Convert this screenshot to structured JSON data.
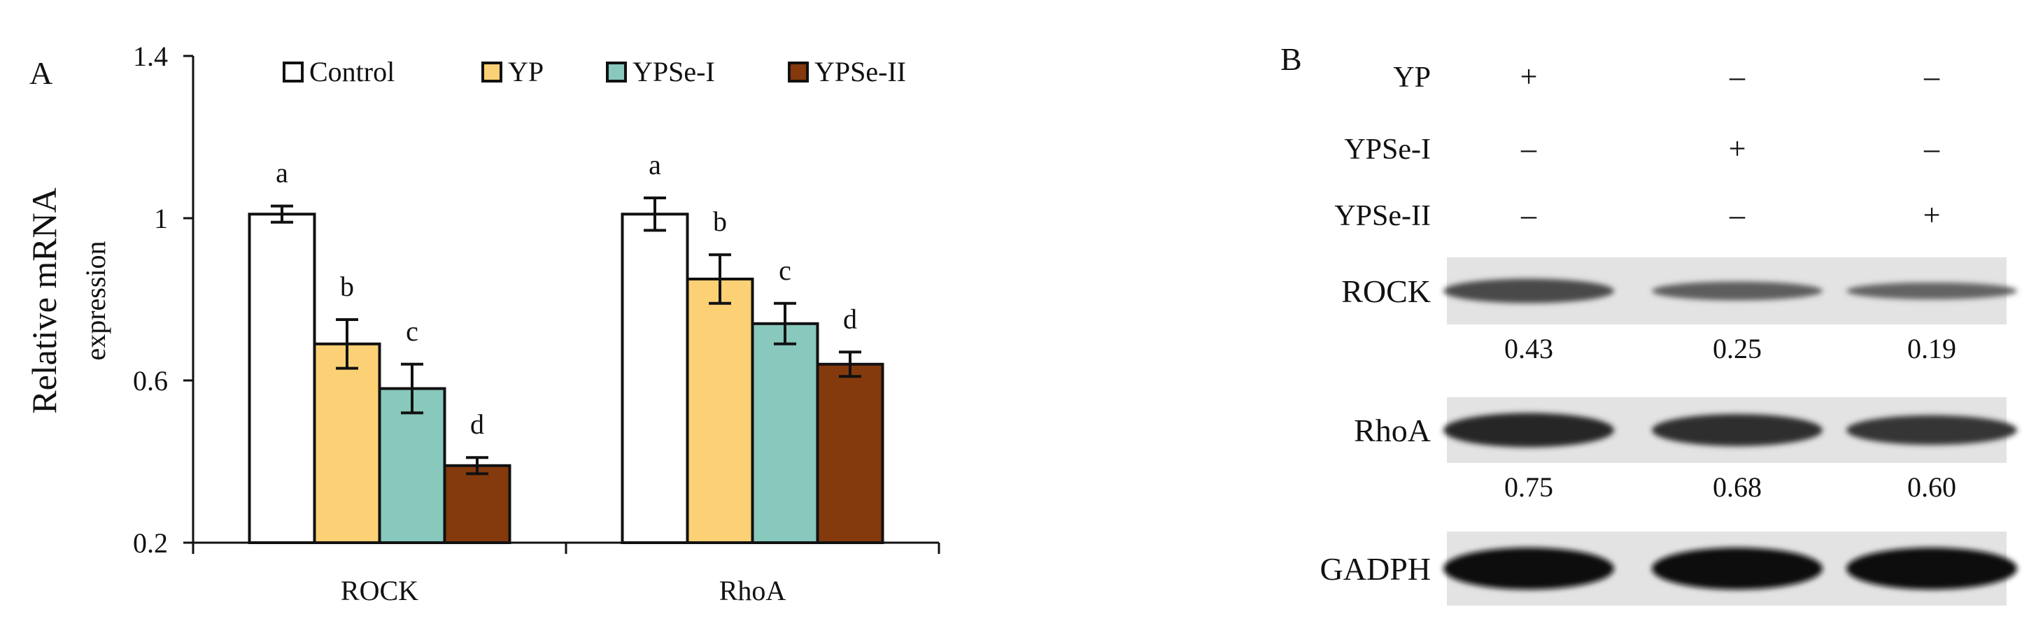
{
  "panel_a": {
    "label": "A",
    "chart_data": {
      "type": "bar",
      "title": "",
      "xlabel": "",
      "ylabel": "Relative mRNA",
      "ylabel_sub": "expression",
      "ylim": [
        0.2,
        1.4
      ],
      "yticks": [
        0.2,
        0.6,
        1.0,
        1.4
      ],
      "ytick_labels": [
        "0.2",
        "0.6",
        "1",
        "1.4"
      ],
      "categories": [
        "ROCK",
        "RhoA"
      ],
      "legend_position": "top",
      "series": [
        {
          "name": "Control",
          "color": "#ffffff",
          "values": [
            1.01,
            1.01
          ],
          "errors": [
            0.02,
            0.04
          ],
          "letters": [
            "a",
            "a"
          ]
        },
        {
          "name": "YP",
          "color": "#fcd175",
          "values": [
            0.69,
            0.85
          ],
          "errors": [
            0.06,
            0.06
          ],
          "letters": [
            "b",
            "b"
          ]
        },
        {
          "name": "YPSe-I",
          "color": "#88c8bd",
          "values": [
            0.58,
            0.74
          ],
          "errors": [
            0.06,
            0.05
          ],
          "letters": [
            "c",
            "c"
          ]
        },
        {
          "name": "YPSe-II",
          "color": "#843a0c",
          "values": [
            0.39,
            0.64
          ],
          "errors": [
            0.02,
            0.03
          ],
          "letters": [
            "d",
            "d"
          ]
        }
      ]
    }
  },
  "panel_b": {
    "label": "B",
    "conditions": [
      {
        "name": "YP",
        "marks": [
          "+",
          "–",
          "–"
        ]
      },
      {
        "name": "YPSe-I",
        "marks": [
          "–",
          "+",
          "–"
        ]
      },
      {
        "name": "YPSe-II",
        "marks": [
          "–",
          "–",
          "+"
        ]
      }
    ],
    "blots": [
      {
        "name": "ROCK",
        "values": [
          "0.43",
          "0.25",
          "0.19"
        ],
        "intensity": [
          0.43,
          0.25,
          0.19
        ]
      },
      {
        "name": "RhoA",
        "values": [
          "0.75",
          "0.68",
          "0.60"
        ],
        "intensity": [
          0.75,
          0.68,
          0.6
        ]
      },
      {
        "name": "GADPH",
        "values": [],
        "intensity": [
          1.0,
          1.0,
          1.0
        ]
      }
    ]
  }
}
